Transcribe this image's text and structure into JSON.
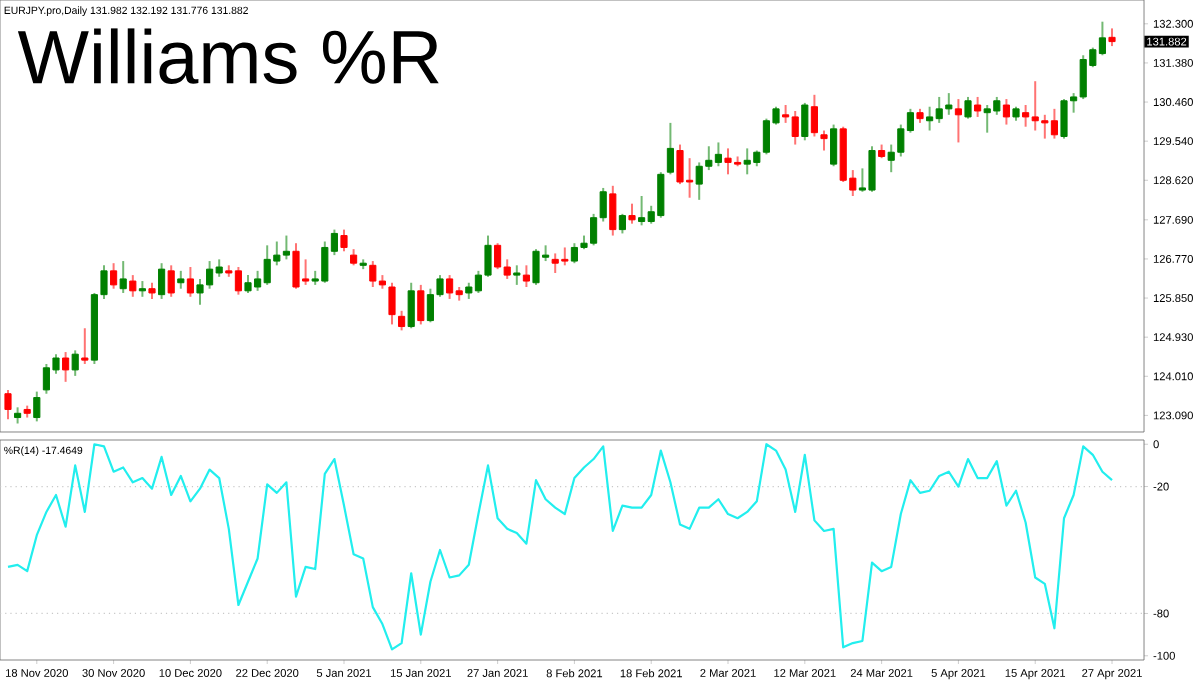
{
  "chart_data": [
    {
      "type": "candlestick",
      "title": "Williams %R",
      "annotations": [
        "EURJPY.pro,Daily 131.982 132.192 131.776 131.882",
        "131.882"
      ],
      "categories": [
        null,
        null,
        null,
        null,
        null,
        null,
        null,
        null,
        null,
        null,
        null,
        null,
        null,
        null,
        null,
        null,
        null,
        null,
        null,
        null,
        null,
        null,
        null,
        null,
        null,
        null,
        null,
        null,
        null,
        null,
        null,
        null,
        null,
        null,
        null,
        null,
        null,
        null,
        null,
        null,
        null,
        null,
        null,
        null,
        null,
        null,
        null,
        null,
        null,
        null,
        null,
        null,
        null,
        null,
        null,
        null,
        null,
        null,
        null,
        null,
        null,
        null,
        null,
        null,
        null,
        null,
        null,
        null,
        null,
        null,
        null,
        null,
        null,
        null,
        null,
        null,
        null,
        null,
        null,
        null,
        null,
        null,
        null,
        null,
        null,
        null,
        null,
        null,
        null,
        null,
        null,
        null,
        null,
        null,
        null,
        null,
        null,
        null,
        null,
        null,
        null,
        null,
        null,
        null,
        null,
        null,
        null,
        null,
        null,
        null,
        null,
        null,
        null,
        null,
        null,
        null
      ],
      "ohlc": [
        [
          123.6,
          123.69,
          123.0,
          123.23
        ],
        [
          123.04,
          123.28,
          122.9,
          123.14
        ],
        [
          123.23,
          123.32,
          123.04,
          123.14
        ],
        [
          123.04,
          123.65,
          122.95,
          123.51
        ],
        [
          123.69,
          124.3,
          123.6,
          124.21
        ],
        [
          124.16,
          124.53,
          124.07,
          124.44
        ],
        [
          124.44,
          124.58,
          123.88,
          124.16
        ],
        [
          124.16,
          124.62,
          124.02,
          124.53
        ],
        [
          124.44,
          125.14,
          124.3,
          124.39
        ],
        [
          124.39,
          125.97,
          124.3,
          125.93
        ],
        [
          125.93,
          126.62,
          125.83,
          126.49
        ],
        [
          126.49,
          126.67,
          126.07,
          126.16
        ],
        [
          126.07,
          126.72,
          125.97,
          126.3
        ],
        [
          126.25,
          126.39,
          125.88,
          126.02
        ],
        [
          126.02,
          126.25,
          125.88,
          126.07
        ],
        [
          126.07,
          126.21,
          125.83,
          125.97
        ],
        [
          125.93,
          126.67,
          125.83,
          126.53
        ],
        [
          126.49,
          126.62,
          125.88,
          125.97
        ],
        [
          126.21,
          126.49,
          126.07,
          126.3
        ],
        [
          126.3,
          126.58,
          125.88,
          125.97
        ],
        [
          125.97,
          126.3,
          125.69,
          126.16
        ],
        [
          126.16,
          126.72,
          126.07,
          126.53
        ],
        [
          126.44,
          126.76,
          126.35,
          126.58
        ],
        [
          126.49,
          126.62,
          126.35,
          126.44
        ],
        [
          126.49,
          126.58,
          125.93,
          126.02
        ],
        [
          126.02,
          126.39,
          125.97,
          126.21
        ],
        [
          126.11,
          126.49,
          126.02,
          126.3
        ],
        [
          126.21,
          127.09,
          126.16,
          126.76
        ],
        [
          126.72,
          127.18,
          126.62,
          126.86
        ],
        [
          126.86,
          127.32,
          126.76,
          126.95
        ],
        [
          126.95,
          127.14,
          126.07,
          126.11
        ],
        [
          126.3,
          126.76,
          126.16,
          126.25
        ],
        [
          126.25,
          126.49,
          126.16,
          126.3
        ],
        [
          126.25,
          127.18,
          126.21,
          127.04
        ],
        [
          126.95,
          127.46,
          126.86,
          127.37
        ],
        [
          127.32,
          127.46,
          126.95,
          127.04
        ],
        [
          126.86,
          127.0,
          126.62,
          126.67
        ],
        [
          126.62,
          126.76,
          126.53,
          126.67
        ],
        [
          126.62,
          126.72,
          126.11,
          126.25
        ],
        [
          126.25,
          126.39,
          126.07,
          126.16
        ],
        [
          126.11,
          126.21,
          125.23,
          125.46
        ],
        [
          125.42,
          125.55,
          125.09,
          125.18
        ],
        [
          125.18,
          126.21,
          125.14,
          126.02
        ],
        [
          126.02,
          126.16,
          125.23,
          125.32
        ],
        [
          125.32,
          126.07,
          125.28,
          125.93
        ],
        [
          125.93,
          126.39,
          125.88,
          126.3
        ],
        [
          126.3,
          126.39,
          125.83,
          125.97
        ],
        [
          126.02,
          126.11,
          125.79,
          125.93
        ],
        [
          125.97,
          126.21,
          125.83,
          126.11
        ],
        [
          126.02,
          126.49,
          125.97,
          126.39
        ],
        [
          126.39,
          127.32,
          126.35,
          127.09
        ],
        [
          127.09,
          127.14,
          126.53,
          126.58
        ],
        [
          126.58,
          126.76,
          126.3,
          126.39
        ],
        [
          126.39,
          126.62,
          126.16,
          126.44
        ],
        [
          126.39,
          126.62,
          126.11,
          126.25
        ],
        [
          126.21,
          127.0,
          126.16,
          126.95
        ],
        [
          126.81,
          127.09,
          126.72,
          126.86
        ],
        [
          126.76,
          126.9,
          126.44,
          126.67
        ],
        [
          126.76,
          127.04,
          126.62,
          126.72
        ],
        [
          126.72,
          127.14,
          126.67,
          127.04
        ],
        [
          127.04,
          127.32,
          127.0,
          127.14
        ],
        [
          127.14,
          127.83,
          127.09,
          127.74
        ],
        [
          127.74,
          128.44,
          127.65,
          128.35
        ],
        [
          128.3,
          128.49,
          127.32,
          127.46
        ],
        [
          127.46,
          127.83,
          127.37,
          127.79
        ],
        [
          127.79,
          128.07,
          127.6,
          127.69
        ],
        [
          127.65,
          128.25,
          127.56,
          127.74
        ],
        [
          127.65,
          128.02,
          127.6,
          127.88
        ],
        [
          127.79,
          128.81,
          127.74,
          128.76
        ],
        [
          128.81,
          129.97,
          128.76,
          129.37
        ],
        [
          129.32,
          129.46,
          128.53,
          128.58
        ],
        [
          128.62,
          129.14,
          128.21,
          128.58
        ],
        [
          128.53,
          129.04,
          128.16,
          128.95
        ],
        [
          128.95,
          129.42,
          128.86,
          129.09
        ],
        [
          129.04,
          129.51,
          128.95,
          129.23
        ],
        [
          129.14,
          129.37,
          128.76,
          129.04
        ],
        [
          129.04,
          129.18,
          128.95,
          129.0
        ],
        [
          129.0,
          129.37,
          128.76,
          129.09
        ],
        [
          129.04,
          129.32,
          128.95,
          129.28
        ],
        [
          129.28,
          130.07,
          129.23,
          130.02
        ],
        [
          129.97,
          130.35,
          129.93,
          130.3
        ],
        [
          130.16,
          130.39,
          129.97,
          130.11
        ],
        [
          130.11,
          130.25,
          129.46,
          129.65
        ],
        [
          129.65,
          130.44,
          129.56,
          130.39
        ],
        [
          130.35,
          130.63,
          129.65,
          129.74
        ],
        [
          129.69,
          129.79,
          129.32,
          129.6
        ],
        [
          129.0,
          129.93,
          128.95,
          129.83
        ],
        [
          129.83,
          129.88,
          128.58,
          128.62
        ],
        [
          128.67,
          128.86,
          128.25,
          128.39
        ],
        [
          128.39,
          128.9,
          128.35,
          128.44
        ],
        [
          128.39,
          129.42,
          128.35,
          129.32
        ],
        [
          129.32,
          129.46,
          129.14,
          129.18
        ],
        [
          129.09,
          129.46,
          128.81,
          129.28
        ],
        [
          129.28,
          129.93,
          129.18,
          129.83
        ],
        [
          129.79,
          130.3,
          129.74,
          130.21
        ],
        [
          130.21,
          130.3,
          129.97,
          130.07
        ],
        [
          130.02,
          130.35,
          129.79,
          130.11
        ],
        [
          130.07,
          130.58,
          129.97,
          130.3
        ],
        [
          130.3,
          130.67,
          130.16,
          130.39
        ],
        [
          130.3,
          130.53,
          129.51,
          130.16
        ],
        [
          130.11,
          130.58,
          130.07,
          130.49
        ],
        [
          130.39,
          130.58,
          130.11,
          130.25
        ],
        [
          130.21,
          130.39,
          129.74,
          130.3
        ],
        [
          130.25,
          130.58,
          130.16,
          130.49
        ],
        [
          130.39,
          130.53,
          129.93,
          130.11
        ],
        [
          130.11,
          130.35,
          130.02,
          130.3
        ],
        [
          130.21,
          130.39,
          129.88,
          130.11
        ],
        [
          130.11,
          130.95,
          129.79,
          130.02
        ],
        [
          130.02,
          130.16,
          129.6,
          129.97
        ],
        [
          130.02,
          130.3,
          129.6,
          129.69
        ],
        [
          129.65,
          130.53,
          129.6,
          130.49
        ],
        [
          130.49,
          130.67,
          130.21,
          130.58
        ],
        [
          130.58,
          131.56,
          130.53,
          131.46
        ],
        [
          131.32,
          131.74,
          131.28,
          131.69
        ],
        [
          131.6,
          132.35,
          131.56,
          131.97
        ],
        [
          131.982,
          132.192,
          131.776,
          131.882
        ]
      ],
      "colors": [
        "#ff0000",
        "#008000",
        "#ff0000",
        "#008000",
        "#008000",
        "#008000",
        "#ff0000",
        "#008000",
        "#ff0000",
        "#008000",
        "#008000",
        "#ff0000",
        "#008000",
        "#ff0000",
        "#008000",
        "#ff0000",
        "#008000",
        "#ff0000",
        "#008000",
        "#ff0000",
        "#008000",
        "#008000",
        "#008000",
        "#ff0000",
        "#ff0000",
        "#008000",
        "#008000",
        "#008000",
        "#008000",
        "#008000",
        "#ff0000",
        "#ff0000",
        "#008000",
        "#008000",
        "#008000",
        "#ff0000",
        "#ff0000",
        "#008000",
        "#ff0000",
        "#ff0000",
        "#ff0000",
        "#ff0000",
        "#008000",
        "#ff0000",
        "#008000",
        "#008000",
        "#ff0000",
        "#ff0000",
        "#008000",
        "#008000",
        "#008000",
        "#ff0000",
        "#ff0000",
        "#008000",
        "#ff0000",
        "#008000",
        "#008000",
        "#ff0000",
        "#ff0000",
        "#008000",
        "#008000",
        "#008000",
        "#008000",
        "#ff0000",
        "#008000",
        "#ff0000",
        "#008000",
        "#008000",
        "#008000",
        "#008000",
        "#ff0000",
        "#ff0000",
        "#008000",
        "#008000",
        "#008000",
        "#ff0000",
        "#ff0000",
        "#008000",
        "#008000",
        "#008000",
        "#008000",
        "#ff0000",
        "#ff0000",
        "#008000",
        "#ff0000",
        "#ff0000",
        "#008000",
        "#ff0000",
        "#ff0000",
        "#008000",
        "#008000",
        "#ff0000",
        "#008000",
        "#008000",
        "#008000",
        "#ff0000",
        "#008000",
        "#008000",
        "#008000",
        "#ff0000",
        "#008000",
        "#ff0000",
        "#008000",
        "#008000",
        "#ff0000",
        "#008000",
        "#ff0000",
        "#ff0000",
        "#ff0000",
        "#ff0000",
        "#008000",
        "#008000",
        "#008000",
        "#008000",
        "#008000",
        "#ff0000"
      ],
      "ylim": [
        122.7,
        132.86
      ],
      "yticks": [
        {
          "value": 123.09,
          "label": "123.090"
        },
        {
          "value": 124.01,
          "label": "124.010"
        },
        {
          "value": 124.93,
          "label": "124.930"
        },
        {
          "value": 125.85,
          "label": "125.850"
        },
        {
          "value": 126.77,
          "label": "126.770"
        },
        {
          "value": 127.69,
          "label": "127.690"
        },
        {
          "value": 128.62,
          "label": "128.620"
        },
        {
          "value": 129.54,
          "label": "129.540"
        },
        {
          "value": 130.46,
          "label": "130.460"
        },
        {
          "value": 131.38,
          "label": "131.380"
        },
        {
          "value": 132.3,
          "label": "132.300"
        }
      ],
      "tick_labels": "y"
    },
    {
      "type": "line",
      "annotations": [
        "%R(14) -17.4649"
      ],
      "categories": [
        null,
        null,
        null,
        "18 Nov 2020",
        null,
        null,
        null,
        null,
        null,
        null,
        null,
        "30 Nov 2020",
        null,
        null,
        null,
        null,
        null,
        null,
        null,
        "10 Dec 2020",
        null,
        null,
        null,
        null,
        null,
        null,
        null,
        "22 Dec 2020",
        null,
        null,
        null,
        null,
        null,
        null,
        null,
        "5 Jan 2021",
        null,
        null,
        null,
        null,
        null,
        null,
        null,
        "15 Jan 2021",
        null,
        null,
        null,
        null,
        null,
        null,
        null,
        "27 Jan 2021",
        null,
        null,
        null,
        null,
        null,
        null,
        null,
        "8 Feb 2021",
        null,
        null,
        null,
        null,
        null,
        null,
        null,
        "18 Feb 2021",
        null,
        null,
        null,
        null,
        null,
        null,
        null,
        "2 Mar 2021",
        null,
        null,
        null,
        null,
        null,
        null,
        null,
        "12 Mar 2021",
        null,
        null,
        null,
        null,
        null,
        null,
        null,
        "24 Mar 2021",
        null,
        null,
        null,
        null,
        null,
        null,
        null,
        "5 Apr 2021",
        null,
        null,
        null,
        null,
        null,
        null,
        null,
        "15 Apr 2021",
        null,
        null,
        null,
        null,
        null,
        null,
        null,
        "27 Apr 2021"
      ],
      "series": [
        {
          "color": "#22eeee",
          "values": [
            -58,
            -57,
            -60,
            -43,
            -32,
            -24,
            -39,
            -10,
            -32,
            0,
            -1,
            -13,
            -11,
            -18,
            -16,
            -21,
            -6,
            -24,
            -15,
            -27,
            -21,
            -12,
            -16,
            -40,
            -76,
            -65,
            -54,
            -19,
            -23,
            -18,
            -72,
            -58,
            -59,
            -14,
            -7,
            -29,
            -52,
            -54,
            -77,
            -85,
            -97,
            -94,
            -61,
            -90,
            -65,
            -50,
            -63,
            -62,
            -57,
            -33,
            -10,
            -35,
            -40,
            -42,
            -47,
            -17,
            -26,
            -30,
            -33,
            -16,
            -11,
            -7,
            -1,
            -41,
            -29,
            -30,
            -30,
            -24,
            -3,
            -18,
            -38,
            -40,
            -30,
            -30,
            -26,
            -33,
            -35,
            -32,
            -27,
            0,
            -3,
            -12,
            -32,
            -5,
            -36,
            -41,
            -40,
            -96,
            -94,
            -93,
            -56,
            -60,
            -58,
            -33,
            -17,
            -23,
            -22,
            -15,
            -13,
            -20,
            -7,
            -16,
            -16,
            -8,
            -29,
            -22,
            -37,
            -63,
            -66,
            -87,
            -35,
            -24,
            -1,
            -5,
            -13,
            -17
          ]
        }
      ],
      "ylim": [
        -102,
        2
      ],
      "yticks": [
        0,
        -20,
        -80,
        -100
      ],
      "ref_lines": [
        {
          "axis": "y",
          "value": -20,
          "color": "#c8c8c8",
          "line_style": "dotted"
        },
        {
          "axis": "y",
          "value": -80,
          "color": "#c8c8c8",
          "line_style": "dotted"
        }
      ]
    }
  ]
}
